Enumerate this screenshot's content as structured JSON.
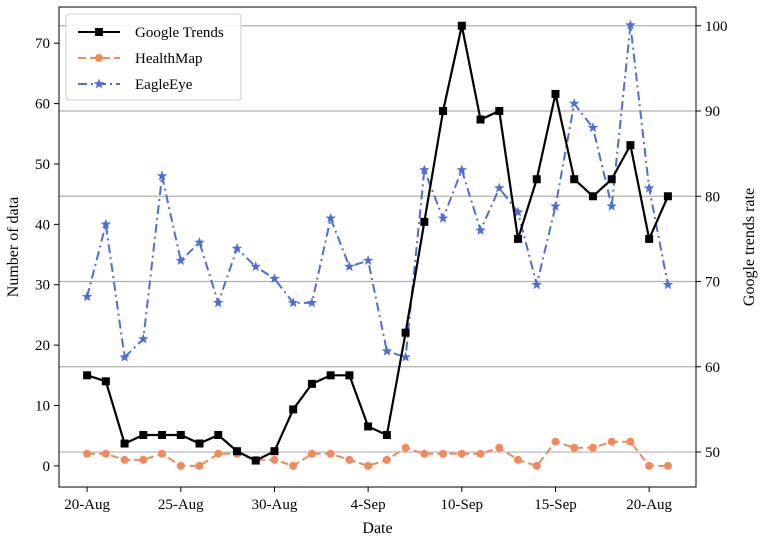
{
  "chart_data": {
    "type": "line",
    "xlabel": "Date",
    "ylabel": "Number of data",
    "ylabel_right": "Google trends rate",
    "x": [
      0,
      1,
      2,
      3,
      4,
      5,
      6,
      7,
      8,
      9,
      10,
      11,
      12,
      13,
      14,
      15,
      16,
      17,
      18,
      19,
      20,
      21,
      22,
      23,
      24,
      25,
      26,
      27,
      28,
      29,
      30,
      31
    ],
    "x_ticks": [
      {
        "pos": 0,
        "label": "20-Aug"
      },
      {
        "pos": 5,
        "label": "25-Aug"
      },
      {
        "pos": 10,
        "label": "30-Aug"
      },
      {
        "pos": 15,
        "label": "4-Sep"
      },
      {
        "pos": 20,
        "label": "10-Sep"
      },
      {
        "pos": 25,
        "label": "15-Sep"
      },
      {
        "pos": 30,
        "label": "20-Aug"
      }
    ],
    "xlim": [
      -1.5,
      32.5
    ],
    "ylim_left": [
      -3.5,
      76
    ],
    "yticks_left": [
      0,
      10,
      20,
      30,
      40,
      50,
      60,
      70
    ],
    "ylim_right": [
      45.9,
      102.2
    ],
    "yticks_right": [
      50,
      60,
      70,
      80,
      90,
      100
    ],
    "grid_right_y": true,
    "legend_position": "top-left",
    "series": [
      {
        "name": "Google Trends",
        "axis": "right",
        "color": "#000000",
        "linestyle": "solid",
        "marker": "square",
        "values": [
          59.0,
          58.3,
          51.0,
          52.0,
          52.0,
          52.0,
          51.0,
          52.0,
          50.1,
          49.0,
          50.1,
          55.0,
          58.0,
          59.0,
          59.0,
          53.0,
          52.0,
          64.0,
          77.0,
          90.0,
          100.0,
          89.0,
          90.0,
          75.0,
          82.0,
          92.0,
          82.0,
          80.0,
          82.0,
          86.0,
          75.0,
          80.0
        ]
      },
      {
        "name": "HealthMap",
        "axis": "left",
        "color": "#f08a5b",
        "linestyle": "dashed",
        "marker": "circle",
        "values": [
          2,
          2,
          1,
          1,
          2,
          0,
          0,
          2,
          2,
          1,
          1,
          0,
          2,
          2,
          1,
          0,
          1,
          3,
          2,
          2,
          2,
          2,
          3,
          1,
          0,
          4,
          3,
          3,
          4,
          4,
          0,
          0
        ]
      },
      {
        "name": "EagleEye",
        "axis": "left",
        "color": "#4c6fd4",
        "linestyle": "dashdot",
        "marker": "star",
        "values": [
          28,
          40,
          18,
          21,
          48,
          34,
          37,
          27,
          36,
          33,
          31,
          27,
          27,
          41,
          33,
          34,
          19,
          18,
          49,
          41,
          49,
          39,
          46,
          42,
          30,
          43,
          60,
          56,
          43,
          73,
          46,
          30
        ]
      }
    ]
  }
}
